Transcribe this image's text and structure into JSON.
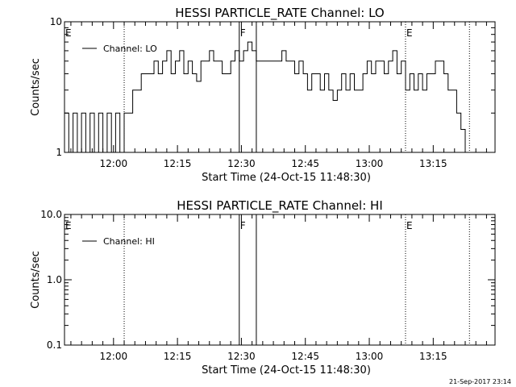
{
  "chart_data": [
    {
      "type": "line",
      "title": "HESSI PARTICLE_RATE Channel: LO",
      "xlabel": "Start Time (24-Oct-15 11:48:30)",
      "ylabel": "Counts/sec",
      "y_scale": "log",
      "ylim": [
        1,
        10
      ],
      "y_ticks": [
        1,
        10
      ],
      "y_tick_labels": [
        "1",
        "10"
      ],
      "xlim": [
        "11:48:30",
        "13:29:30"
      ],
      "x_ticks": [
        "12:00",
        "12:15",
        "12:30",
        "12:45",
        "13:00",
        "13:15"
      ],
      "legend": {
        "placement": "top-left",
        "entries": [
          "Channel: LO"
        ]
      },
      "series": [
        {
          "name": "Channel: LO",
          "x": [
            "11:48:30",
            "11:49:30",
            "11:50:30",
            "11:51:30",
            "11:52:30",
            "11:53:30",
            "11:54:30",
            "11:55:30",
            "11:56:30",
            "11:57:30",
            "11:58:30",
            "11:59:30",
            "12:00:30",
            "12:01:30",
            "12:02:30",
            "12:03:30",
            "12:04:30",
            "12:05:30",
            "12:06:30",
            "12:07:30",
            "12:08:30",
            "12:09:30",
            "12:10:30",
            "12:11:30",
            "12:12:30",
            "12:13:30",
            "12:14:30",
            "12:15:30",
            "12:16:30",
            "12:17:30",
            "12:18:30",
            "12:19:30",
            "12:20:30",
            "12:21:30",
            "12:22:30",
            "12:23:30",
            "12:24:30",
            "12:25:30",
            "12:26:30",
            "12:27:30",
            "12:28:30",
            "12:29:30",
            "12:30:30",
            "12:31:30",
            "12:32:30",
            "12:33:30",
            "12:34:30",
            "12:35:30",
            "12:36:30",
            "12:37:30",
            "12:38:30",
            "12:39:30",
            "12:40:30",
            "12:41:30",
            "12:42:30",
            "12:43:30",
            "12:44:30",
            "12:45:30",
            "12:46:30",
            "12:47:30",
            "12:48:30",
            "12:49:30",
            "12:50:30",
            "12:51:30",
            "12:52:30",
            "12:53:30",
            "12:54:30",
            "12:55:30",
            "12:56:30",
            "12:57:30",
            "12:58:30",
            "12:59:30",
            "13:00:30",
            "13:01:30",
            "13:02:30",
            "13:03:30",
            "13:04:30",
            "13:05:30",
            "13:06:30",
            "13:07:30",
            "13:08:30",
            "13:09:30",
            "13:10:30",
            "13:11:30",
            "13:12:30",
            "13:13:30",
            "13:14:30",
            "13:15:30",
            "13:16:30",
            "13:17:30",
            "13:18:30",
            "13:19:30",
            "13:20:30",
            "13:21:30",
            "13:22:30",
            "13:23:30"
          ],
          "values": [
            2,
            1,
            2,
            1,
            2,
            1,
            2,
            1,
            2,
            1,
            2,
            1,
            2,
            1,
            2,
            2,
            3,
            3,
            4,
            4,
            4,
            5,
            4,
            5,
            6,
            4,
            5,
            6,
            4,
            5,
            4,
            3.5,
            5,
            5,
            6,
            5,
            5,
            4,
            4,
            5,
            6,
            5,
            6,
            7,
            6,
            5,
            5,
            5,
            5,
            5,
            5,
            6,
            5,
            5,
            4,
            5,
            4,
            3,
            4,
            4,
            3,
            4,
            3,
            2.5,
            3,
            4,
            3,
            4,
            3,
            3,
            4,
            5,
            4,
            5,
            5,
            4,
            5,
            6,
            4,
            5,
            3,
            4,
            3,
            4,
            3,
            4,
            4,
            5,
            5,
            4,
            3,
            3,
            2,
            1.5,
            1,
            1
          ]
        }
      ],
      "annotations": [
        {
          "label": "E",
          "position": "top-left"
        },
        {
          "label": "F",
          "x": "12:29:30"
        },
        {
          "label": "E",
          "x": "13:08:30"
        }
      ],
      "vertical_lines": [
        {
          "x": "12:02:30",
          "style": "dotted"
        },
        {
          "x": "12:29:30",
          "style": "solid"
        },
        {
          "x": "12:33:30",
          "style": "solid"
        },
        {
          "x": "13:08:30",
          "style": "dotted"
        },
        {
          "x": "13:23:30",
          "style": "dotted"
        }
      ]
    },
    {
      "type": "line",
      "title": "HESSI PARTICLE_RATE Channel: HI",
      "xlabel": "Start Time (24-Oct-15 11:48:30)",
      "ylabel": "Counts/sec",
      "y_scale": "log",
      "ylim": [
        0.1,
        10
      ],
      "y_ticks": [
        0.1,
        1,
        10
      ],
      "y_tick_labels": [
        "0.1",
        "1.0",
        "10.0"
      ],
      "xlim": [
        "11:48:30",
        "13:29:30"
      ],
      "x_ticks": [
        "12:00",
        "12:15",
        "12:30",
        "12:45",
        "13:00",
        "13:15"
      ],
      "legend": {
        "placement": "top-left",
        "entries": [
          "Channel: HI"
        ]
      },
      "series": [
        {
          "name": "Channel: HI",
          "x": [],
          "values": []
        }
      ],
      "annotations": [
        {
          "label": "E",
          "position": "top-left"
        },
        {
          "label": "F",
          "x": "12:29:30"
        },
        {
          "label": "E",
          "x": "13:08:30"
        }
      ],
      "vertical_lines": [
        {
          "x": "12:02:30",
          "style": "dotted"
        },
        {
          "x": "12:29:30",
          "style": "solid"
        },
        {
          "x": "12:33:30",
          "style": "solid"
        },
        {
          "x": "13:08:30",
          "style": "dotted"
        },
        {
          "x": "13:23:30",
          "style": "dotted"
        }
      ]
    }
  ],
  "footer": {
    "timestamp": "21-Sep-2017 23:14"
  }
}
